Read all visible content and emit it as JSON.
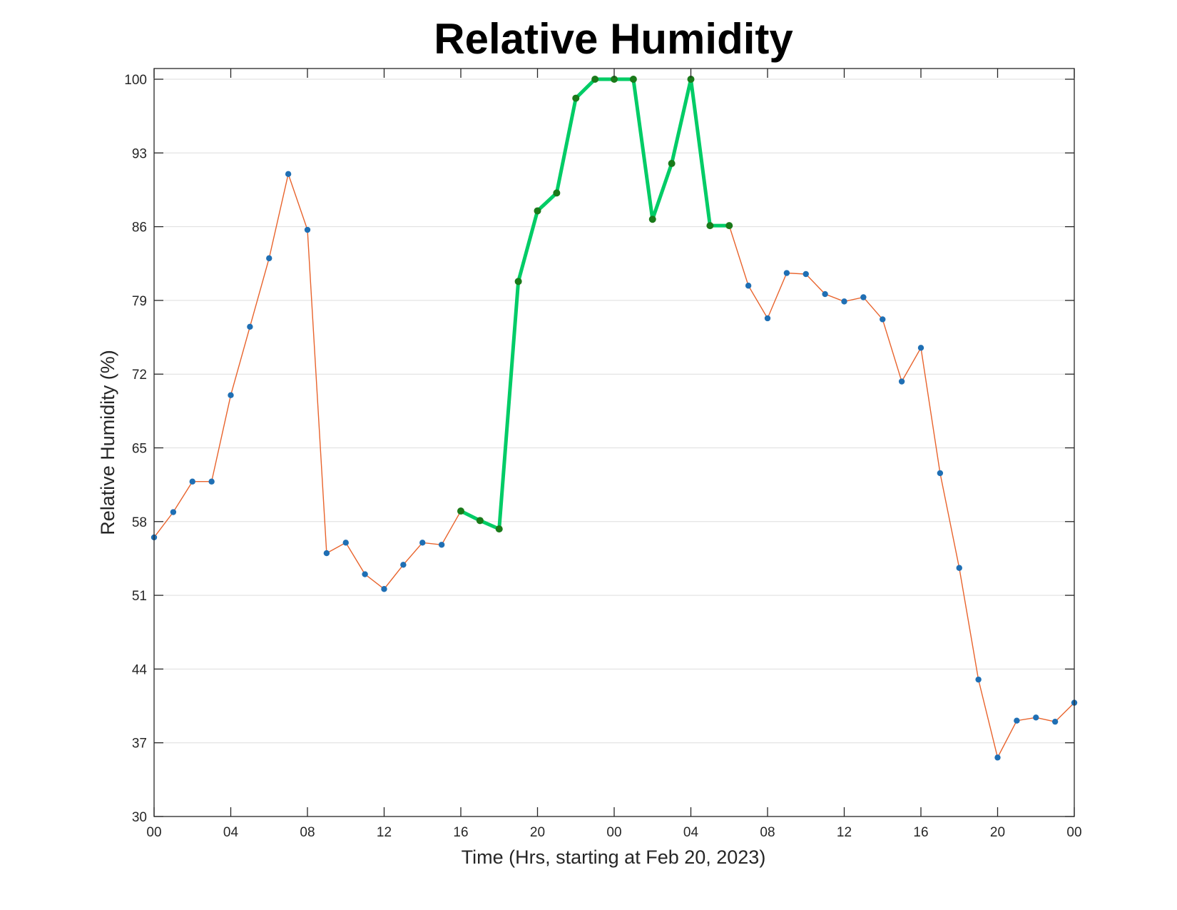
{
  "chart_data": {
    "type": "line",
    "title": "Relative Humidity",
    "xlabel": "Time (Hrs, starting at Feb 20, 2023)",
    "ylabel": "Relative Humidity (%)",
    "ylim": [
      30,
      100
    ],
    "xlim": [
      0,
      48
    ],
    "yticks": [
      30,
      37,
      44,
      51,
      58,
      65,
      72,
      79,
      86,
      93,
      100
    ],
    "xticks": [
      0,
      4,
      8,
      12,
      16,
      20,
      24,
      28,
      32,
      36,
      40,
      44,
      48
    ],
    "xtick_labels": [
      "00",
      "04",
      "08",
      "12",
      "16",
      "20",
      "00",
      "04",
      "08",
      "12",
      "16",
      "20",
      "00"
    ],
    "grid": "horizontal",
    "colors": {
      "base_line": "#e8632c",
      "marker": "#1f6fb4",
      "highlight_line": "#00cc66",
      "highlight_marker": "#1a7a1a"
    },
    "series": [
      {
        "x": [
          0,
          1,
          2,
          3,
          4,
          5,
          6,
          7,
          8,
          9,
          10,
          11,
          12,
          13,
          14,
          15,
          16,
          17,
          18,
          19,
          20,
          21,
          22,
          23,
          24,
          25,
          26,
          27,
          28,
          29,
          30,
          31,
          32,
          33,
          34,
          35,
          36,
          37,
          38,
          39,
          40,
          41,
          42,
          43,
          44,
          45,
          46,
          47,
          48
        ],
        "values": [
          56.5,
          58.9,
          61.8,
          61.8,
          70.0,
          76.5,
          83.0,
          91.0,
          85.7,
          55.0,
          56.0,
          53.0,
          51.6,
          53.9,
          56.0,
          55.8,
          59.0,
          58.1,
          57.3,
          80.8,
          87.5,
          89.2,
          98.2,
          100,
          100,
          100,
          86.7,
          92.0,
          100,
          86.1,
          86.1,
          80.4,
          77.3,
          81.6,
          81.5,
          79.6,
          78.9,
          79.3,
          77.2,
          71.3,
          74.5,
          62.6,
          53.6,
          43.0,
          35.6,
          39.1,
          39.4,
          39.0,
          40.8
        ]
      }
    ],
    "highlight_range": [
      16,
      30
    ]
  }
}
